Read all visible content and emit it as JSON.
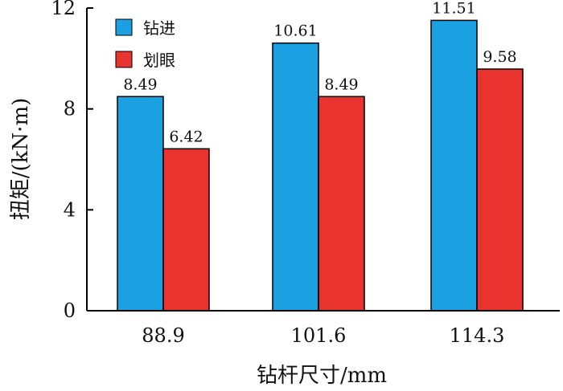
{
  "chart_data": {
    "type": "bar",
    "categories": [
      "88.9",
      "101.6",
      "114.3"
    ],
    "series": [
      {
        "name": "钻进",
        "color": "#1ba1e2",
        "values": [
          8.49,
          10.61,
          11.51
        ],
        "labels": [
          "8.49",
          "10.61",
          "11.51"
        ]
      },
      {
        "name": "划眼",
        "color": "#e8332e",
        "values": [
          6.42,
          8.49,
          9.58
        ],
        "labels": [
          "6.42",
          "8.49",
          "9.58"
        ]
      }
    ],
    "xlabel": "钻杆尺寸/mm",
    "ylabel": "扭矩/(kN·m)",
    "ylim": [
      0,
      12
    ],
    "yticks": [
      0,
      4,
      8,
      12
    ],
    "grid": false,
    "legend_position": "top-left"
  }
}
